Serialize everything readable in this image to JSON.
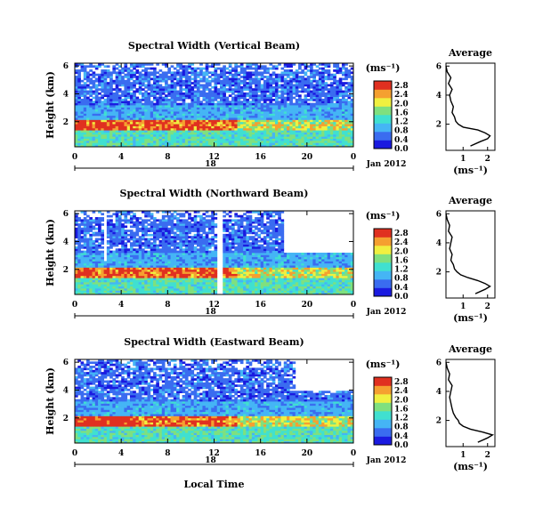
{
  "chart_data": {
    "type": "heatmap",
    "common": {
      "ylabel": "Height (km)",
      "colorbar_unit": "(ms⁻¹)",
      "x_ticks": [
        "0",
        "4",
        "8",
        "12",
        "16",
        "20",
        "0"
      ],
      "x_tick_values": [
        0,
        4,
        8,
        12,
        16,
        20,
        24
      ],
      "y_ticks_main": [
        "6",
        "4",
        "2"
      ],
      "y_tick_values": [
        6,
        4,
        2
      ],
      "xlim": [
        0,
        24
      ],
      "ylim": [
        0.2,
        6.2
      ],
      "date_marker_label": "18",
      "date_label": "Jan 2012",
      "xlabel": "Local Time",
      "colorbar_ticks": [
        "2.8",
        "2.4",
        "2.0",
        "1.6",
        "1.2",
        "0.8",
        "0.4",
        "0.0"
      ],
      "colorbar_tick_values": [
        2.8,
        2.4,
        2.0,
        1.6,
        1.2,
        0.8,
        0.4,
        0.0
      ],
      "colorbar_range": [
        0,
        3.0
      ],
      "colors": [
        "#1a1ae0",
        "#3a6cf0",
        "#45b5f5",
        "#40e0d0",
        "#7fe07f",
        "#f0f040",
        "#f5a030",
        "#e03020"
      ],
      "profile_title": "Average",
      "profile_xlabel": "(ms⁻¹)",
      "profile_y_ticks": [
        "6",
        "4",
        "2"
      ],
      "profile_xlim": [
        0.3,
        2.3
      ]
    },
    "panels": [
      {
        "title": "Spectral Width (Vertical Beam)",
        "profile_x_ticks": [
          "1",
          "2"
        ],
        "profile_x_tick_values": [
          1,
          2
        ],
        "profile": {
          "height": [
            0.5,
            0.8,
            1.0,
            1.2,
            1.4,
            1.6,
            1.8,
            2.0,
            2.2,
            2.5,
            2.8,
            3.2,
            3.6,
            4.0,
            4.4,
            4.8,
            5.2,
            5.6,
            6.0
          ],
          "value": [
            1.3,
            1.7,
            2.0,
            2.1,
            1.9,
            1.6,
            1.0,
            0.8,
            0.7,
            0.65,
            0.55,
            0.6,
            0.5,
            0.45,
            0.55,
            0.4,
            0.5,
            0.35,
            0.3
          ]
        }
      },
      {
        "title": "Spectral Width (Northward Beam)",
        "profile_x_ticks": [
          "1",
          "2"
        ],
        "profile_x_tick_values": [
          1,
          2
        ],
        "profile": {
          "height": [
            0.5,
            0.8,
            1.0,
            1.2,
            1.4,
            1.6,
            1.8,
            2.0,
            2.2,
            2.5,
            2.8,
            3.2,
            3.6,
            4.0,
            4.4,
            4.8,
            5.2,
            5.6,
            6.0
          ],
          "value": [
            1.5,
            1.9,
            2.1,
            1.9,
            1.6,
            1.2,
            0.9,
            0.75,
            0.65,
            0.6,
            0.5,
            0.55,
            0.45,
            0.5,
            0.55,
            0.4,
            0.45,
            0.35,
            0.3
          ]
        }
      },
      {
        "title": "Spectral Width (Eastward Beam)",
        "profile_x_ticks": [
          "1",
          "2"
        ],
        "profile_x_tick_values": [
          1,
          2
        ],
        "profile": {
          "height": [
            0.5,
            0.8,
            1.0,
            1.2,
            1.4,
            1.6,
            1.8,
            2.0,
            2.2,
            2.5,
            2.8,
            3.2,
            3.6,
            4.0,
            4.4,
            4.8,
            5.2,
            5.6,
            6.0
          ],
          "value": [
            1.6,
            2.0,
            2.2,
            1.8,
            1.3,
            1.0,
            0.85,
            0.8,
            0.7,
            0.6,
            0.55,
            0.5,
            0.45,
            0.5,
            0.55,
            0.4,
            0.45,
            0.35,
            0.3
          ]
        }
      }
    ]
  }
}
